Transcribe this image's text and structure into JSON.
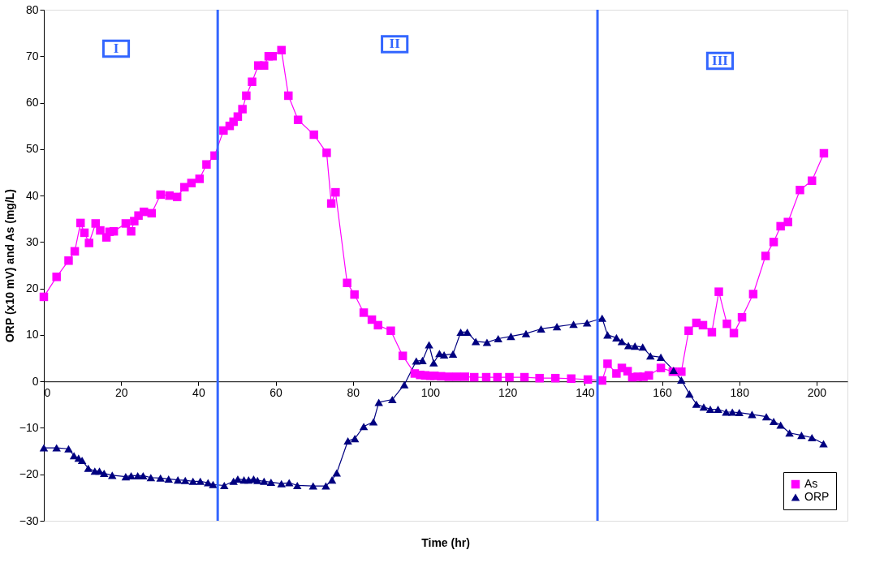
{
  "chart_data": {
    "type": "line",
    "xlabel": "Time (hr)",
    "ylabel": "ORP (x10 mV) and As (mg/L)",
    "xlim": [
      0,
      208
    ],
    "xticks": [
      0,
      20,
      40,
      60,
      80,
      100,
      120,
      140,
      160,
      180,
      200
    ],
    "ylim": [
      -30,
      80
    ],
    "yticks": [
      -30,
      -20,
      -10,
      0,
      10,
      20,
      30,
      40,
      50,
      60,
      70,
      80
    ],
    "grid": false,
    "legend": "bottom right",
    "line_style": "solid",
    "ref_lines": [
      {
        "axis": "x",
        "value": 45,
        "color": "#3366ff"
      },
      {
        "axis": "x",
        "value": 143.3,
        "color": "#3366ff"
      }
    ],
    "annotations": [
      {
        "text": "I",
        "x": 18.7,
        "y": 71.6
      },
      {
        "text": "II",
        "x": 90.8,
        "y": 72.6
      },
      {
        "text": "III",
        "x": 175,
        "y": 69
      }
    ],
    "series": [
      {
        "name": "As",
        "color": "#ff00ff",
        "marker": "square",
        "x": [
          0,
          3.3,
          6.4,
          8,
          9.5,
          10.5,
          11.7,
          13.4,
          14.6,
          16.2,
          17,
          18.1,
          21.2,
          22.6,
          23.4,
          24.5,
          25.9,
          27.9,
          30.2,
          32.5,
          34.5,
          36.4,
          38.2,
          40.3,
          42.1,
          44.2,
          46.5,
          48.1,
          49.1,
          50.2,
          51.4,
          52.4,
          53.9,
          55.5,
          57,
          58.2,
          59.2,
          61.5,
          63.3,
          65.8,
          69.9,
          73.2,
          74.4,
          75.5,
          78.5,
          80.4,
          82.8,
          84.9,
          86.5,
          89.8,
          92.9,
          96,
          97.4,
          98.7,
          100,
          101.1,
          102.8,
          104.8,
          106.9,
          109,
          111.4,
          114.5,
          117.4,
          120.5,
          124.4,
          128.3,
          132.4,
          136.5,
          140.8,
          144.5,
          145.9,
          148.2,
          149.6,
          151.1,
          152.3,
          153.7,
          155.2,
          156.6,
          159.7,
          162.8,
          165,
          166.9,
          168.9,
          170.6,
          172.9,
          174.7,
          176.8,
          178.6,
          180.7,
          183.6,
          186.8,
          188.9,
          190.7,
          192.6,
          195.7,
          198.8,
          201.9
        ],
        "values": [
          18.2,
          22.5,
          26,
          28,
          34.1,
          32,
          29.8,
          34,
          32.5,
          31,
          32.2,
          32.3,
          34,
          32.3,
          34.5,
          35.7,
          36.5,
          36.2,
          40.2,
          40,
          39.7,
          41.8,
          42.7,
          43.6,
          46.7,
          48.6,
          54,
          55,
          55.9,
          57,
          58.6,
          61.5,
          64.5,
          68,
          68,
          70,
          70,
          71.3,
          61.5,
          56.3,
          53.1,
          49.2,
          38.3,
          40.7,
          21.2,
          18.7,
          14.8,
          13.3,
          12.1,
          10.9,
          5.5,
          1.7,
          1.4,
          1.3,
          1.2,
          1.2,
          1.1,
          1,
          1,
          1,
          0.9,
          0.9,
          0.9,
          0.9,
          0.9,
          0.7,
          0.7,
          0.6,
          0.4,
          0.2,
          3.8,
          1.7,
          2.9,
          2.2,
          0.9,
          1,
          1,
          1.3,
          2.9,
          2.1,
          2.1,
          10.9,
          12.6,
          12.1,
          10.6,
          19.3,
          12.4,
          10.4,
          13.8,
          18.8,
          27,
          30,
          33.4,
          34.3,
          41.2,
          43.2,
          49.1
        ]
      },
      {
        "name": "ORP",
        "color": "#000080",
        "marker": "triangle",
        "x": [
          0,
          3.3,
          6.4,
          7.8,
          9,
          9.9,
          11.5,
          13.2,
          14.4,
          15.6,
          17.7,
          21.2,
          22.6,
          24.3,
          25.7,
          27.7,
          30.2,
          32.3,
          34.7,
          36.6,
          38.6,
          40.5,
          42.5,
          43.8,
          46.7,
          49.1,
          50.2,
          51.8,
          53,
          54.3,
          55.3,
          57,
          58.8,
          61.5,
          63.5,
          65.6,
          69.7,
          73,
          74.6,
          75.8,
          78.7,
          80.5,
          82.8,
          85.3,
          86.7,
          90.2,
          93.3,
          96.4,
          98,
          99.7,
          100.9,
          102.4,
          103.6,
          105.9,
          107.9,
          109.6,
          111.8,
          114.7,
          117.6,
          120.9,
          124.8,
          128.7,
          132.8,
          137.1,
          140.6,
          144.5,
          145.9,
          148.2,
          149.6,
          151.3,
          153,
          155,
          157,
          159.7,
          163,
          165,
          167.1,
          168.9,
          170.8,
          172.5,
          174.5,
          176.6,
          178.2,
          180,
          183.3,
          187,
          188.9,
          190.7,
          193,
          196.1,
          198.8,
          201.8
        ],
        "values": [
          -14.3,
          -14.3,
          -14.5,
          -16,
          -16.5,
          -17,
          -18.7,
          -19.3,
          -19.3,
          -19.8,
          -20.2,
          -20.5,
          -20.3,
          -20.3,
          -20.3,
          -20.7,
          -20.8,
          -21,
          -21.2,
          -21.3,
          -21.5,
          -21.5,
          -21.8,
          -22.2,
          -22.4,
          -21.5,
          -21,
          -21.2,
          -21.2,
          -21,
          -21.3,
          -21.5,
          -21.7,
          -22,
          -21.8,
          -22.4,
          -22.5,
          -22.5,
          -21.2,
          -19.7,
          -12.8,
          -12.3,
          -9.7,
          -8.7,
          -4.5,
          -3.9,
          -0.7,
          4.4,
          4.5,
          7.9,
          4,
          6,
          5.7,
          5.9,
          10.6,
          10.6,
          8.6,
          8.4,
          9.2,
          9.7,
          10.3,
          11.3,
          11.8,
          12.3,
          12.6,
          13.6,
          10,
          9.4,
          8.6,
          7.7,
          7.6,
          7.4,
          5.5,
          5.2,
          2.4,
          0.3,
          -2.7,
          -4.9,
          -5.5,
          -6,
          -6,
          -6.6,
          -6.6,
          -6.7,
          -7.1,
          -7.6,
          -8.6,
          -9.4,
          -11.1,
          -11.6,
          -12.1,
          -13.4
        ]
      }
    ]
  }
}
